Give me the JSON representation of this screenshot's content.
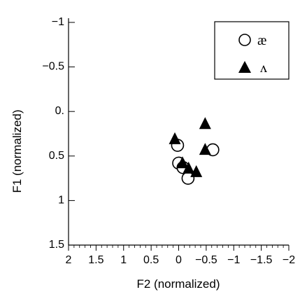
{
  "chart_data": {
    "type": "scatter",
    "xlabel": "F2 (normalized)",
    "ylabel": "F1 (normalized)",
    "xlim": [
      2,
      -2
    ],
    "ylim": [
      1.5,
      -1
    ],
    "x_ticks": [
      2,
      1.5,
      1,
      0.5,
      0,
      -0.5,
      -1,
      -1.5,
      -2
    ],
    "x_tick_labels": [
      "2",
      "1.5",
      "1",
      "0.5",
      "0",
      "−0.5",
      "−1",
      "−1.5",
      "−2"
    ],
    "y_ticks": [
      -1,
      -0.5,
      0,
      0.5,
      1,
      1.5
    ],
    "y_tick_labels": [
      "−1",
      "−0.5",
      "0.",
      "0.5",
      "1",
      "1.5"
    ],
    "series": [
      {
        "name": "æ",
        "marker": "open-circle",
        "color": "#000000",
        "points": [
          {
            "x": 0.02,
            "y": 0.38
          },
          {
            "x": -0.62,
            "y": 0.43
          },
          {
            "x": 0.0,
            "y": 0.58
          },
          {
            "x": -0.08,
            "y": 0.63
          },
          {
            "x": -0.17,
            "y": 0.75
          }
        ]
      },
      {
        "name": "ʌ",
        "marker": "filled-triangle",
        "color": "#000000",
        "points": [
          {
            "x": -0.48,
            "y": 0.13
          },
          {
            "x": 0.07,
            "y": 0.3
          },
          {
            "x": -0.48,
            "y": 0.42
          },
          {
            "x": -0.07,
            "y": 0.57
          },
          {
            "x": -0.18,
            "y": 0.63
          },
          {
            "x": -0.32,
            "y": 0.67
          }
        ]
      }
    ],
    "legend_position": "top-right",
    "grid": false
  }
}
